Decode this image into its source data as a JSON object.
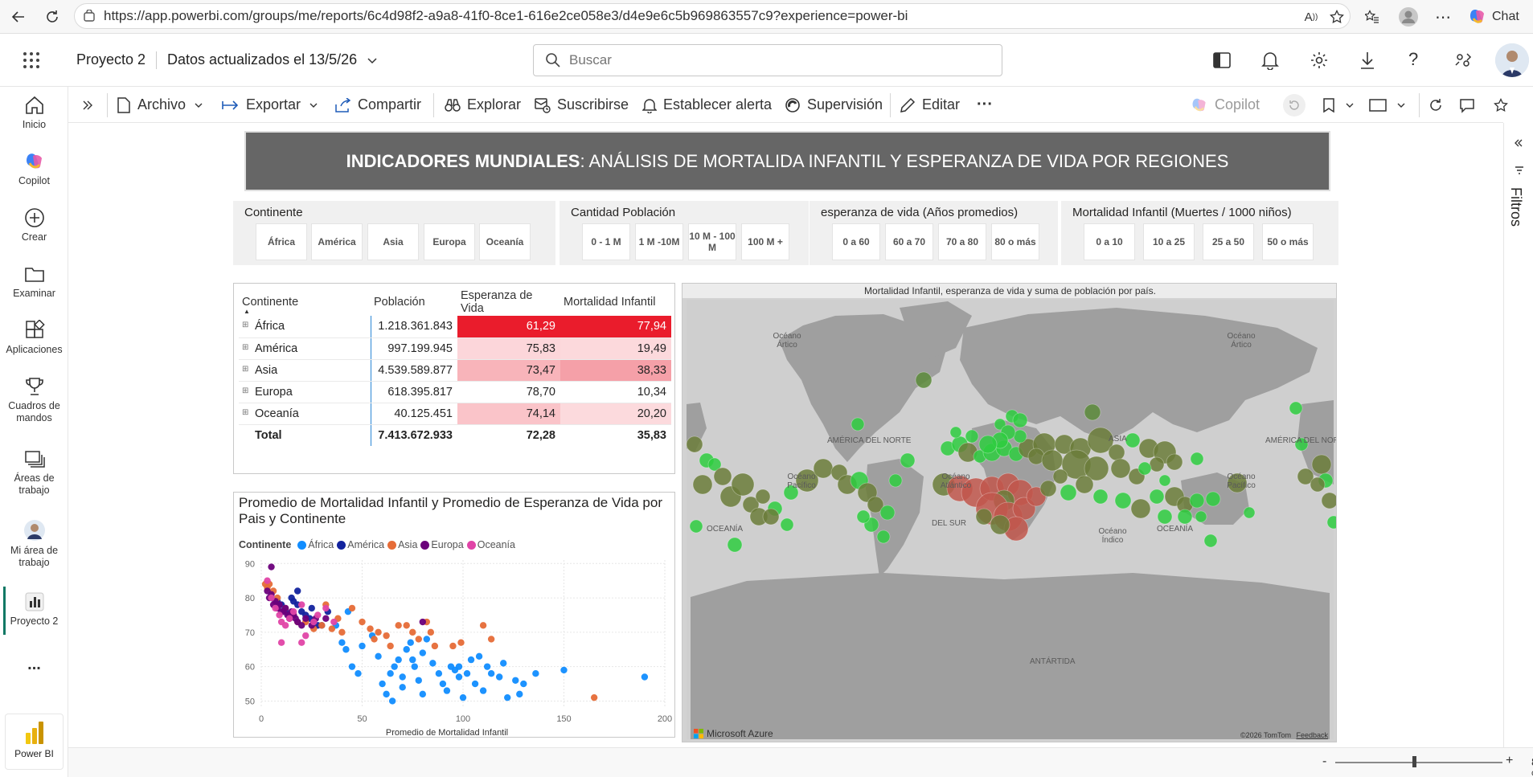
{
  "browser": {
    "url": "https://app.powerbi.com/groups/me/reports/6c4d98f2-a9a8-41f0-8ce1-616e2ce058e3/d4e9e6c5b969863557c9?experience=power-bi",
    "chat_label": "Chat"
  },
  "appbar": {
    "workspace": "Proyecto 2",
    "data_updated": "Datos actualizados el 13/5/26",
    "search_placeholder": "Buscar"
  },
  "nav": {
    "items": [
      {
        "label": "Inicio"
      },
      {
        "label": "Copilot"
      },
      {
        "label": "Crear"
      },
      {
        "label": "Examinar"
      },
      {
        "label": "Aplicaciones"
      },
      {
        "label": "Cuadros de mandos"
      },
      {
        "label": "Áreas de trabajo"
      },
      {
        "label": "Mi área de trabajo"
      },
      {
        "label": "Proyecto 2"
      }
    ],
    "more": "...",
    "product": "Power BI"
  },
  "cmdbar": {
    "archivo": "Archivo",
    "exportar": "Exportar",
    "compartir": "Compartir",
    "explorar": "Explorar",
    "suscribirse": "Suscribirse",
    "alerta": "Establecer alerta",
    "supervision": "Supervisión",
    "editar": "Editar",
    "more": "···",
    "copilot": "Copilot"
  },
  "filters_label": "Filtros",
  "report": {
    "title_bold": "INDICADORES MUNDIALES",
    "title_rest": ": ANÁLISIS DE MORTALIDA INFANTIL Y ESPERANZA DE VIDA POR REGIONES",
    "slicers": [
      {
        "title": "Continente",
        "options": [
          "África",
          "América",
          "Asia",
          "Europa",
          "Oceanía"
        ]
      },
      {
        "title": "Cantidad Población",
        "options": [
          "0 - 1 M",
          "1 M -10M",
          "10 M - 100 M",
          "100 M +"
        ]
      },
      {
        "title": "esperanza de vida (Años promedios)",
        "options": [
          "0 a 60",
          "60 a 70",
          "70 a 80",
          "80 o más"
        ]
      },
      {
        "title": "Mortalidad Infantil (Muertes / 1000 niños)",
        "options": [
          "0 a 10",
          "10 a 25",
          "25 a 50",
          "50 o más"
        ]
      }
    ],
    "table": {
      "headers": [
        "Continente",
        "Población",
        "Esperanza de Vida",
        "Mortalidad Infantil"
      ],
      "rows": [
        {
          "name": "África",
          "pop": "1.218.361.843",
          "life": "61,29",
          "mort": "77,94",
          "life_color": "#ea1c2c",
          "mort_color": "#ea1c2c",
          "life_text": "#ffffff",
          "mort_text": "#ffffff"
        },
        {
          "name": "América",
          "pop": "997.199.945",
          "life": "75,83",
          "mort": "19,49",
          "life_color": "#fcd6da",
          "mort_color": "#fcd9dc",
          "life_text": "#242424",
          "mort_text": "#242424"
        },
        {
          "name": "Asia",
          "pop": "4.539.589.877",
          "life": "73,47",
          "mort": "38,33",
          "life_color": "#f8b4ba",
          "mort_color": "#f5a0a8",
          "life_text": "#242424",
          "mort_text": "#242424"
        },
        {
          "name": "Europa",
          "pop": "618.395.817",
          "life": "78,70",
          "mort": "10,34",
          "life_color": "#ffffff",
          "mort_color": "#ffffff",
          "life_text": "#242424",
          "mort_text": "#242424"
        },
        {
          "name": "Oceanía",
          "pop": "40.125.451",
          "life": "74,14",
          "mort": "20,20",
          "life_color": "#fac4c9",
          "mort_color": "#fcdadd",
          "life_text": "#242424",
          "mort_text": "#242424"
        }
      ],
      "total": {
        "name": "Total",
        "pop": "7.413.672.933",
        "life": "72,28",
        "mort": "35,83"
      }
    },
    "map": {
      "title": "Mortalidad Infantil, esperanza de vida y suma de población por país.",
      "labels": [
        "Océano Ártico",
        "Océano Ártico",
        "AMÉRICA DEL NORTE",
        "ASIA",
        "AMÉRICA DEL NOR",
        "Océano Pacífico",
        "Océano Atlántico",
        "Océano Pacífico",
        "OCEANÍA",
        "DEL SUR",
        "Océano Índico",
        "OCEANÍA",
        "ANTÁRTIDA"
      ],
      "brand": "Microsoft Azure",
      "copyright": "©2026 TomTom",
      "feedback": "Feedback"
    }
  },
  "chart_data": {
    "type": "scatter",
    "title": "Promedio de Mortalidad Infantil y Promedio de Esperanza de Vida por Pais y Continente",
    "legend_title": "Continente",
    "xlabel": "Promedio de Mortalidad Infantil",
    "ylabel": "",
    "xlim": [
      0,
      200
    ],
    "ylim": [
      48,
      91
    ],
    "xticks": [
      "0",
      "50",
      "100",
      "150",
      "200"
    ],
    "yticks": [
      "50",
      "60",
      "70",
      "80",
      "90"
    ],
    "legend_position": "top-left",
    "series": [
      {
        "name": "África",
        "color": "#118dff",
        "points": [
          [
            40,
            67
          ],
          [
            42,
            65
          ],
          [
            45,
            60
          ],
          [
            48,
            58
          ],
          [
            50,
            66
          ],
          [
            55,
            69
          ],
          [
            58,
            63
          ],
          [
            60,
            55
          ],
          [
            62,
            52
          ],
          [
            64,
            58
          ],
          [
            65,
            50
          ],
          [
            66,
            60
          ],
          [
            68,
            62
          ],
          [
            70,
            57
          ],
          [
            70,
            54
          ],
          [
            72,
            65
          ],
          [
            74,
            67
          ],
          [
            75,
            62
          ],
          [
            76,
            60
          ],
          [
            78,
            56
          ],
          [
            80,
            64
          ],
          [
            82,
            68
          ],
          [
            85,
            61
          ],
          [
            88,
            58
          ],
          [
            90,
            55
          ],
          [
            92,
            53
          ],
          [
            94,
            60
          ],
          [
            96,
            59
          ],
          [
            98,
            60
          ],
          [
            100,
            51
          ],
          [
            102,
            58
          ],
          [
            104,
            62
          ],
          [
            106,
            55
          ],
          [
            108,
            63
          ],
          [
            110,
            53
          ],
          [
            112,
            60
          ],
          [
            114,
            58
          ],
          [
            118,
            57
          ],
          [
            120,
            61
          ],
          [
            122,
            51
          ],
          [
            126,
            56
          ],
          [
            128,
            52
          ],
          [
            130,
            55
          ],
          [
            136,
            58
          ],
          [
            150,
            59
          ],
          [
            190,
            57
          ],
          [
            43,
            76
          ],
          [
            37,
            72
          ],
          [
            98,
            57
          ],
          [
            80,
            52
          ]
        ]
      },
      {
        "name": "América",
        "color": "#12239e",
        "points": [
          [
            5,
            80
          ],
          [
            8,
            79
          ],
          [
            10,
            78
          ],
          [
            12,
            76
          ],
          [
            14,
            75
          ],
          [
            15,
            80
          ],
          [
            16,
            79
          ],
          [
            18,
            78
          ],
          [
            20,
            76
          ],
          [
            22,
            75
          ],
          [
            24,
            74
          ],
          [
            26,
            73
          ],
          [
            28,
            72
          ],
          [
            30,
            72
          ],
          [
            33,
            76
          ],
          [
            18,
            82
          ],
          [
            25,
            77
          ]
        ]
      },
      {
        "name": "Asia",
        "color": "#e66c37",
        "points": [
          [
            2,
            84
          ],
          [
            3,
            83
          ],
          [
            4,
            84
          ],
          [
            6,
            82
          ],
          [
            8,
            80
          ],
          [
            12,
            77
          ],
          [
            16,
            75
          ],
          [
            22,
            73
          ],
          [
            26,
            71
          ],
          [
            30,
            72
          ],
          [
            32,
            78
          ],
          [
            35,
            71
          ],
          [
            38,
            74
          ],
          [
            40,
            70
          ],
          [
            45,
            77
          ],
          [
            50,
            73
          ],
          [
            54,
            71
          ],
          [
            56,
            68
          ],
          [
            58,
            70
          ],
          [
            62,
            69
          ],
          [
            64,
            66
          ],
          [
            68,
            72
          ],
          [
            72,
            72
          ],
          [
            75,
            70
          ],
          [
            78,
            68
          ],
          [
            82,
            73
          ],
          [
            84,
            70
          ],
          [
            86,
            66
          ],
          [
            95,
            66
          ],
          [
            99,
            67
          ],
          [
            110,
            72
          ],
          [
            114,
            68
          ],
          [
            165,
            51
          ],
          [
            18,
            73
          ]
        ]
      },
      {
        "name": "Europa",
        "color": "#6b007b",
        "points": [
          [
            5,
            89
          ],
          [
            3,
            82
          ],
          [
            4,
            80
          ],
          [
            5,
            81
          ],
          [
            6,
            78
          ],
          [
            7,
            79
          ],
          [
            8,
            77
          ],
          [
            9,
            78
          ],
          [
            10,
            76
          ],
          [
            11,
            76
          ],
          [
            12,
            77
          ],
          [
            13,
            75
          ],
          [
            14,
            74
          ],
          [
            15,
            76
          ],
          [
            16,
            75
          ],
          [
            17,
            74
          ],
          [
            18,
            73
          ],
          [
            20,
            72
          ],
          [
            22,
            74
          ],
          [
            25,
            72
          ],
          [
            27,
            74
          ],
          [
            32,
            74
          ],
          [
            80,
            73
          ]
        ]
      },
      {
        "name": "Oceanía",
        "color": "#e044a7",
        "points": [
          [
            3,
            85
          ],
          [
            5,
            80
          ],
          [
            7,
            77
          ],
          [
            9,
            75
          ],
          [
            10,
            73
          ],
          [
            12,
            72
          ],
          [
            14,
            74
          ],
          [
            16,
            76
          ],
          [
            20,
            78
          ],
          [
            26,
            73
          ],
          [
            28,
            75
          ],
          [
            32,
            77
          ],
          [
            36,
            73
          ],
          [
            22,
            69
          ],
          [
            10,
            67
          ],
          [
            20,
            67
          ]
        ]
      }
    ]
  }
}
